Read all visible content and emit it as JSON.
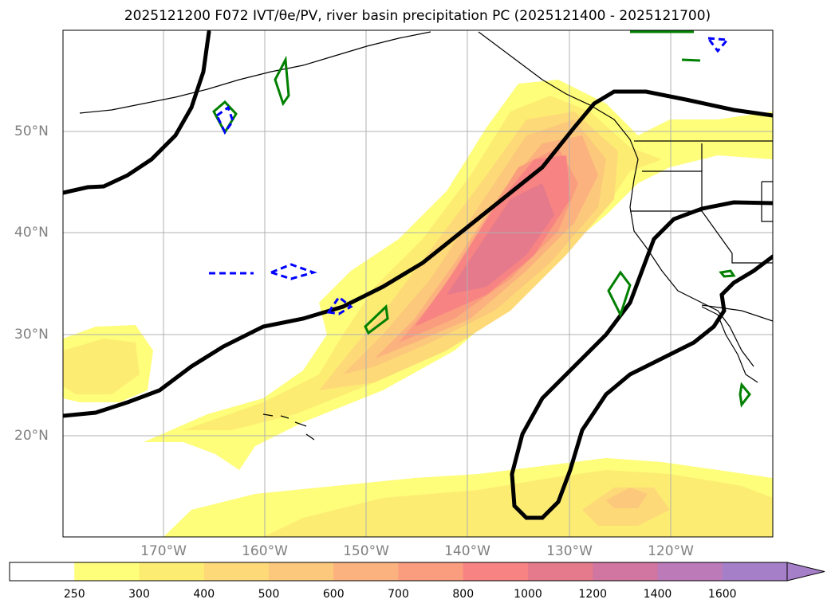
{
  "title": "2025121200 F072 IVT/θe/PV, river basin precipitation PC (2025121400 - 2025121700)",
  "lat_labels": [
    "50°N",
    "40°N",
    "30°N",
    "20°N"
  ],
  "lon_labels": [
    "170°W",
    "160°W",
    "150°W",
    "140°W",
    "130°W",
    "120°W"
  ],
  "colorbar": {
    "ticks": [
      "250",
      "300",
      "400",
      "500",
      "600",
      "700",
      "800",
      "1000",
      "1200",
      "1400",
      "1600"
    ],
    "colors": [
      "#ffffff",
      "#fefe7a",
      "#fdec72",
      "#fdd978",
      "#fcc87b",
      "#fbb27e",
      "#fa9c7e",
      "#f78383",
      "#e47a8b",
      "#d076a0",
      "#bc7ab8",
      "#a67fc9"
    ]
  },
  "map": {
    "ivt_contours": {
      "colors": [
        "#fefe7a",
        "#fdec72",
        "#fdd978",
        "#fcc87b",
        "#fbb27e",
        "#fa9c7e",
        "#f78383",
        "#e47a8b"
      ]
    },
    "pv_contour_color": "#000000",
    "theta_contour_color": "#008000",
    "negative_contour_color": "#0000ff",
    "coastline_color": "#000000",
    "gridline_color": "#b0b0b0"
  }
}
